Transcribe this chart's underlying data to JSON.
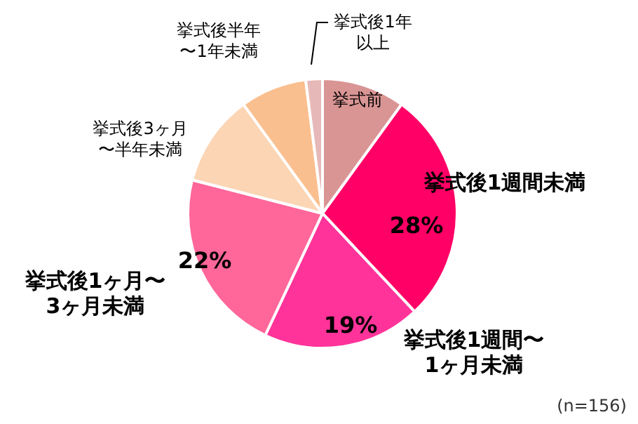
{
  "chart_data": {
    "type": "pie",
    "categories": [
      "挙式前",
      "挙式後1週間未満",
      "挙式後1週間〜1ヶ月未満",
      "挙式後1ヶ月〜3ヶ月未満",
      "挙式後3ヶ月〜半年未満",
      "挙式後半年〜1年未満",
      "挙式後1年以上"
    ],
    "values": [
      10,
      28,
      19,
      22,
      11,
      8,
      2
    ],
    "colors": [
      "#d99594",
      "#ff0066",
      "#ff3399",
      "#ff6699",
      "#fcd5b4",
      "#fabf8f",
      "#e6b9b8"
    ],
    "value_labels": [
      null,
      "28%",
      "19%",
      "22%",
      null,
      null,
      null
    ],
    "legend": false,
    "annotations": [
      "(n=156)"
    ]
  }
}
